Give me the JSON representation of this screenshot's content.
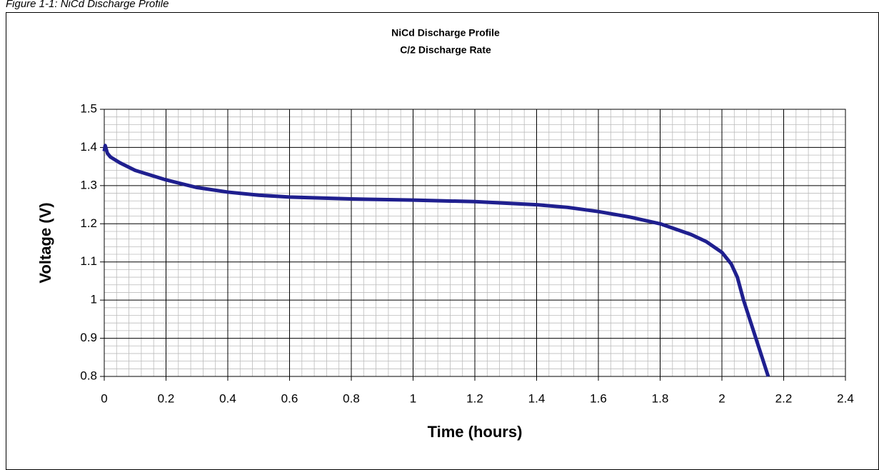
{
  "caption": "Figure 1-1: NiCd Discharge Profile",
  "chart_data": {
    "type": "line",
    "title": "NiCd Discharge Profile",
    "subtitle": "C/2 Discharge Rate",
    "x_label": "Time (hours)",
    "y_label": "Voltage (V)",
    "x": [
      0,
      0.003,
      0.01,
      0.02,
      0.05,
      0.1,
      0.2,
      0.3,
      0.4,
      0.5,
      0.6,
      0.8,
      1.0,
      1.2,
      1.4,
      1.5,
      1.6,
      1.7,
      1.8,
      1.9,
      1.95,
      2.0,
      2.03,
      2.05,
      2.07,
      2.09,
      2.11,
      2.13,
      2.15
    ],
    "series": [
      {
        "name": "Voltage",
        "color": "#1f1f8f",
        "values": [
          1.39,
          1.405,
          1.385,
          1.375,
          1.36,
          1.34,
          1.315,
          1.295,
          1.283,
          1.275,
          1.27,
          1.265,
          1.262,
          1.258,
          1.25,
          1.243,
          1.232,
          1.218,
          1.2,
          1.172,
          1.153,
          1.125,
          1.095,
          1.06,
          1.0,
          0.95,
          0.9,
          0.85,
          0.8
        ]
      }
    ],
    "xlim": [
      0,
      2.4
    ],
    "xticks": [
      0,
      0.2,
      0.4,
      0.6,
      0.8,
      1,
      1.2,
      1.4,
      1.6,
      1.8,
      2,
      2.2,
      2.4
    ],
    "ylim": [
      0.8,
      1.5
    ],
    "yticks": [
      0.8,
      0.9,
      1,
      1.1,
      1.2,
      1.3,
      1.4,
      1.5
    ],
    "grid": true,
    "minor_grid_divisions": 5
  }
}
